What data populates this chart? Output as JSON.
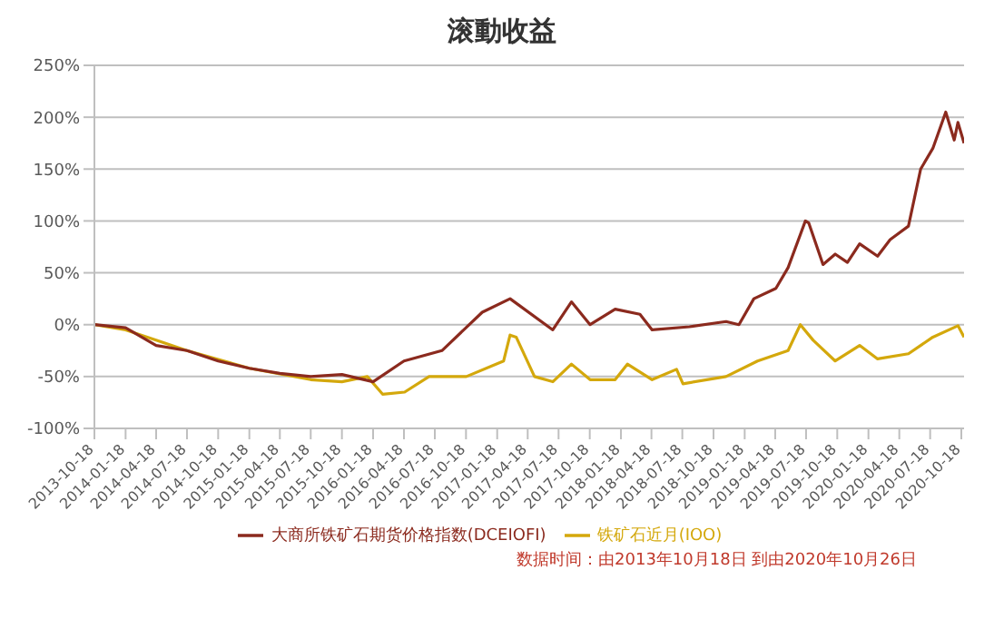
{
  "chart_data": {
    "type": "line",
    "title": "滚動收益",
    "annotations": [
      "数据时间：由2013年10月18日 到由2020年10月26日"
    ],
    "xlim": [
      "2013-10-18",
      "2020-10-26"
    ],
    "xticks": [
      "2013-10-18",
      "2014-01-18",
      "2014-04-18",
      "2014-07-18",
      "2014-10-18",
      "2015-01-18",
      "2015-04-18",
      "2015-07-18",
      "2015-10-18",
      "2016-01-18",
      "2016-04-18",
      "2016-07-18",
      "2016-10-18",
      "2017-01-18",
      "2017-04-18",
      "2017-07-18",
      "2017-10-18",
      "2018-01-18",
      "2018-04-18",
      "2018-07-18",
      "2018-10-18",
      "2019-01-18",
      "2019-04-18",
      "2019-07-18",
      "2019-10-18",
      "2020-01-18",
      "2020-04-18",
      "2020-07-18",
      "2020-10-18"
    ],
    "ylim": [
      -100,
      250
    ],
    "yticks": [
      {
        "value": -100,
        "label": "-100%"
      },
      {
        "value": -50,
        "label": "-50%"
      },
      {
        "value": 0,
        "label": "0%"
      },
      {
        "value": 50,
        "label": "50%"
      },
      {
        "value": 100,
        "label": "100%"
      },
      {
        "value": 150,
        "label": "150%"
      },
      {
        "value": 200,
        "label": "200%"
      },
      {
        "value": 250,
        "label": "250%"
      }
    ],
    "grid": "y",
    "legend": "bottom",
    "marker": "none",
    "line_style": "solid",
    "series": [
      {
        "name": "铁矿石近月(IOO)",
        "color": "#d4a80c",
        "x": [
          "2013-10-18",
          "2014-01-18",
          "2014-04-18",
          "2014-07-18",
          "2015-01-18",
          "2015-07-18",
          "2015-10-18",
          "2016-01-01",
          "2016-02-15",
          "2016-04-20",
          "2016-07-01",
          "2016-10-19",
          "2017-02-06",
          "2017-02-25",
          "2017-03-15",
          "2017-05-08",
          "2017-07-01",
          "2017-08-25",
          "2017-10-19",
          "2018-01-01",
          "2018-02-06",
          "2018-04-20",
          "2018-07-01",
          "2018-07-20",
          "2018-11-24",
          "2019-02-25",
          "2019-05-26",
          "2019-07-01",
          "2019-08-08",
          "2019-10-12",
          "2019-12-23",
          "2020-02-14",
          "2020-05-15",
          "2020-07-26",
          "2020-10-08",
          "2020-10-26"
        ],
        "values": [
          0,
          -5,
          -15,
          -25,
          -42,
          -53,
          -55,
          -50,
          -67,
          -65,
          -50,
          -50,
          -35,
          -10,
          -12,
          -50,
          -55,
          -38,
          -53,
          -53,
          -38,
          -53,
          -43,
          -57,
          -50,
          -35,
          -25,
          0,
          -15,
          -35,
          -20,
          -33,
          -28,
          -12,
          -1,
          -12
        ]
      },
      {
        "name": "大商所铁矿石期货价格指数(DCEIOFI)",
        "color": "#8b2a1e",
        "x": [
          "2013-10-18",
          "2014-01-18",
          "2014-04-18",
          "2014-07-18",
          "2014-10-18",
          "2015-01-18",
          "2015-04-18",
          "2015-07-18",
          "2015-10-18",
          "2016-01-18",
          "2016-04-18",
          "2016-08-08",
          "2016-12-05",
          "2017-02-25",
          "2017-07-01",
          "2017-08-25",
          "2017-10-19",
          "2018-01-01",
          "2018-03-15",
          "2018-04-20",
          "2018-08-08",
          "2018-11-24",
          "2019-01-01",
          "2019-02-14",
          "2019-04-20",
          "2019-05-26",
          "2019-07-16",
          "2019-07-26",
          "2019-09-06",
          "2019-10-12",
          "2019-11-17",
          "2019-12-23",
          "2020-02-14",
          "2020-03-22",
          "2020-05-15",
          "2020-06-20",
          "2020-07-26",
          "2020-09-02",
          "2020-09-27",
          "2020-10-08",
          "2020-10-26"
        ],
        "values": [
          0,
          -3,
          -20,
          -25,
          -35,
          -42,
          -47,
          -50,
          -48,
          -55,
          -35,
          -25,
          12,
          25,
          -5,
          22,
          0,
          15,
          10,
          -5,
          -2,
          3,
          0,
          25,
          35,
          55,
          100,
          98,
          58,
          68,
          60,
          78,
          66,
          82,
          95,
          150,
          170,
          205,
          178,
          195,
          175
        ]
      }
    ]
  }
}
